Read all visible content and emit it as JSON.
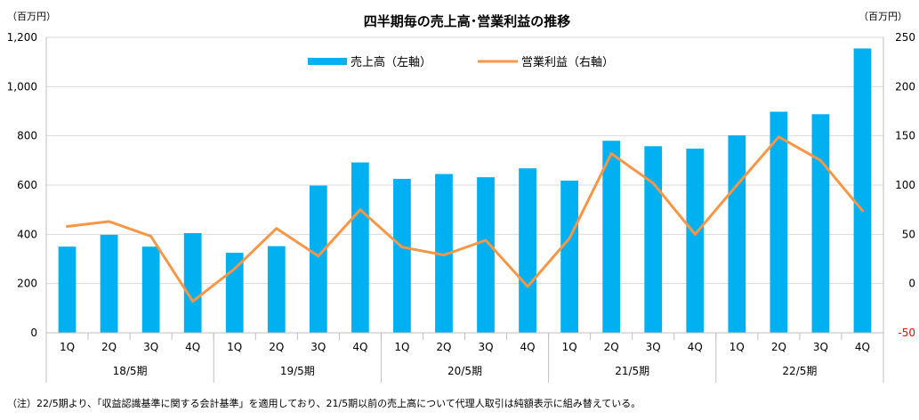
{
  "chart_data": {
    "type": "bar",
    "title": "四半期毎の売上高･営業利益の推移",
    "left_unit": "（百万円）",
    "right_unit": "（百万円）",
    "categories": [
      "1Q",
      "2Q",
      "3Q",
      "4Q",
      "1Q",
      "2Q",
      "3Q",
      "4Q",
      "1Q",
      "2Q",
      "3Q",
      "4Q",
      "1Q",
      "2Q",
      "3Q",
      "4Q",
      "1Q",
      "2Q",
      "3Q",
      "4Q"
    ],
    "groups": [
      {
        "label": "18/5期",
        "size": 4
      },
      {
        "label": "19/5期",
        "size": 4
      },
      {
        "label": "20/5期",
        "size": 4
      },
      {
        "label": "21/5期",
        "size": 4
      },
      {
        "label": "22/5期",
        "size": 4
      }
    ],
    "series": [
      {
        "name": "売上高（左軸）",
        "type": "bar",
        "axis": "left",
        "color": "#00b0f0",
        "values": [
          350,
          398,
          350,
          405,
          325,
          352,
          598,
          692,
          625,
          645,
          632,
          668,
          618,
          780,
          758,
          748,
          802,
          898,
          888,
          1155
        ]
      },
      {
        "name": "営業利益（右軸）",
        "type": "line",
        "axis": "right",
        "color": "#f79646",
        "values": [
          58,
          63,
          48,
          -18,
          15,
          56,
          28,
          75,
          37,
          29,
          44,
          -3,
          46,
          132,
          102,
          50,
          100,
          149,
          125,
          74
        ]
      }
    ],
    "left_axis": {
      "ylim": [
        0,
        1200
      ],
      "ticks": [
        "0",
        "200",
        "400",
        "600",
        "800",
        "1,000",
        "1,200"
      ],
      "tick_values": [
        0,
        200,
        400,
        600,
        800,
        1000,
        1200
      ]
    },
    "right_axis": {
      "ylim": [
        -50,
        250
      ],
      "ticks": [
        "-50",
        "0",
        "50",
        "100",
        "150",
        "200",
        "250"
      ],
      "tick_values": [
        -50,
        0,
        50,
        100,
        150,
        200,
        250
      ],
      "negative_color": "#ff0000"
    },
    "grid": true,
    "legend_position": "top-center"
  },
  "footnote": "（注）22/5期より、「収益認識基準に関する会計基準」を適用しており、21/5期以前の売上高について代理人取引は純額表示に組み替えている。"
}
